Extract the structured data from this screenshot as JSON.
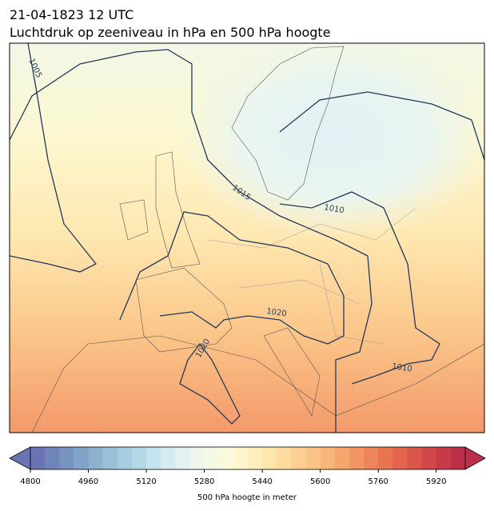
{
  "title": "21-04-1823 12 UTC",
  "subtitle": "Luchtdruk op zeeniveau in hPa en 500 hPa hoogte",
  "map": {
    "contour_labels": [
      "1005",
      "1015",
      "1010",
      "1020",
      "1020",
      "1010"
    ]
  },
  "colorbar": {
    "label": "500 hPa hoogte in meter",
    "lim": [
      4800,
      6000
    ],
    "ticks": [
      4800,
      4960,
      5120,
      5280,
      5440,
      5600,
      5760,
      5920
    ],
    "colors": [
      "#6a74b5",
      "#6f84ba",
      "#7893c0",
      "#82a3c8",
      "#8cb2d0",
      "#98c0d7",
      "#a6cde0",
      "#b5d8e6",
      "#c5e3ec",
      "#d4ebf0",
      "#e2f1f1",
      "#eef6ee",
      "#f5f8e4",
      "#fafada",
      "#fdf6cc",
      "#feefbd",
      "#fee6ae",
      "#fddb9f",
      "#fcd092",
      "#fbc384",
      "#f8b479",
      "#f6a56d",
      "#f29563",
      "#ee855a",
      "#e97452",
      "#e3644d",
      "#dc5549",
      "#d24748",
      "#c73b48",
      "#bb3048"
    ]
  }
}
